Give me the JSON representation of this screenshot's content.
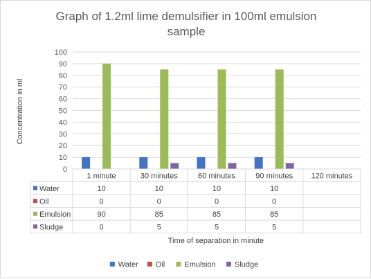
{
  "chart_data": {
    "type": "bar",
    "title_lines": [
      "Graph of 1.2ml lime demulsifier in 100ml emulsion",
      "sample"
    ],
    "xlabel": "Time of separation in minute",
    "ylabel": "Concentration in ml",
    "ylim": [
      0,
      100
    ],
    "yticks": [
      0,
      10,
      20,
      30,
      40,
      50,
      60,
      70,
      80,
      90,
      100
    ],
    "grid": true,
    "legend_position": "bottom",
    "categories": [
      "1 minute",
      "30 minutes",
      "60 minutes",
      "90 minutes",
      "120 minutes"
    ],
    "series": [
      {
        "name": "Water",
        "color": "#4472c4",
        "values": [
          10,
          10,
          10,
          10,
          null
        ]
      },
      {
        "name": "Oil",
        "color": "#c0504d",
        "values": [
          0,
          0,
          0,
          0,
          null
        ]
      },
      {
        "name": "Emulsion",
        "color": "#9bbb59",
        "values": [
          90,
          85,
          85,
          85,
          null
        ]
      },
      {
        "name": "Sludge",
        "color": "#8064a2",
        "values": [
          0,
          5,
          5,
          5,
          null
        ]
      }
    ],
    "data_table": true
  }
}
